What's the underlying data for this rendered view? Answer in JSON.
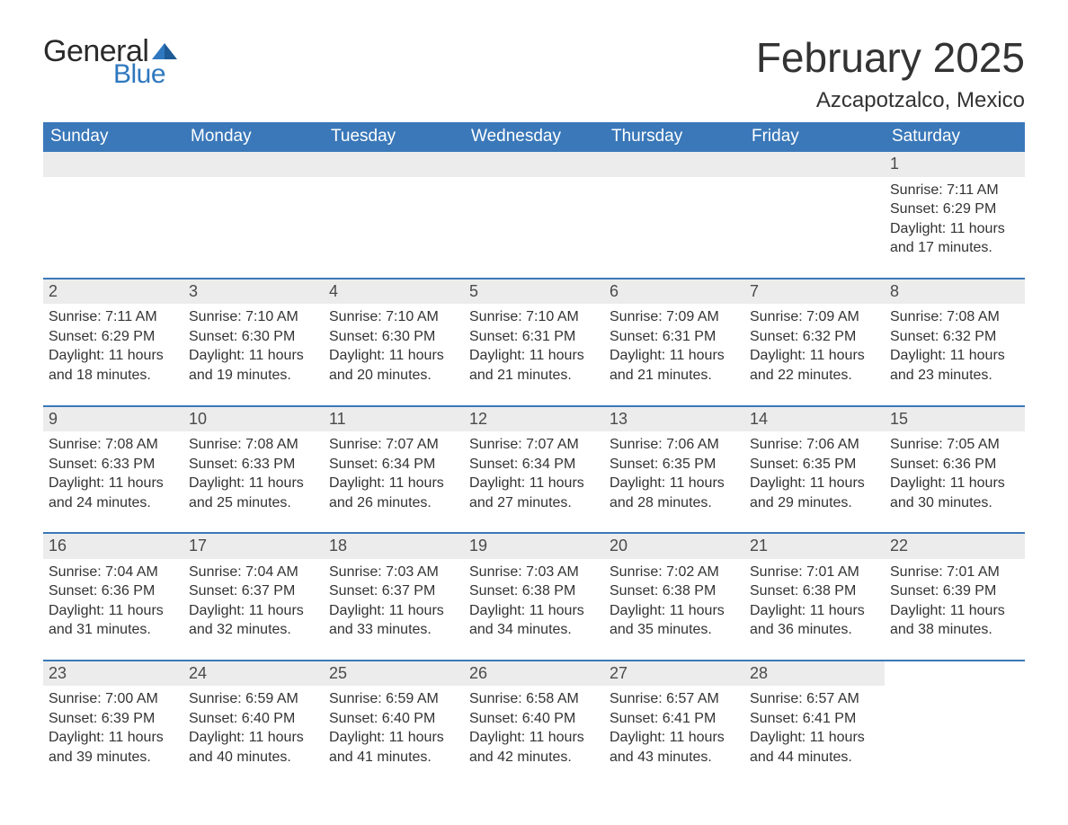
{
  "brand": {
    "word1": "General",
    "word2": "Blue",
    "accent_color": "#2f78bf"
  },
  "header": {
    "month_title": "February 2025",
    "location": "Azcapotzalco, Mexico"
  },
  "colors": {
    "header_bg": "#3a78b9",
    "header_text": "#ffffff",
    "week_rule": "#3a78b9",
    "daynum_bg": "#ececec",
    "page_bg": "#ffffff",
    "text": "#333333"
  },
  "typography": {
    "month_title_pt": 34,
    "location_pt": 18,
    "dayheader_pt": 14,
    "body_pt": 12
  },
  "calendar": {
    "type": "table",
    "day_names": [
      "Sunday",
      "Monday",
      "Tuesday",
      "Wednesday",
      "Thursday",
      "Friday",
      "Saturday"
    ],
    "weeks": [
      [
        {
          "empty": true
        },
        {
          "empty": true
        },
        {
          "empty": true
        },
        {
          "empty": true
        },
        {
          "empty": true
        },
        {
          "empty": true
        },
        {
          "day": "1",
          "sunrise": "Sunrise: 7:11 AM",
          "sunset": "Sunset: 6:29 PM",
          "dl1": "Daylight: 11 hours",
          "dl2": "and 17 minutes."
        }
      ],
      [
        {
          "day": "2",
          "sunrise": "Sunrise: 7:11 AM",
          "sunset": "Sunset: 6:29 PM",
          "dl1": "Daylight: 11 hours",
          "dl2": "and 18 minutes."
        },
        {
          "day": "3",
          "sunrise": "Sunrise: 7:10 AM",
          "sunset": "Sunset: 6:30 PM",
          "dl1": "Daylight: 11 hours",
          "dl2": "and 19 minutes."
        },
        {
          "day": "4",
          "sunrise": "Sunrise: 7:10 AM",
          "sunset": "Sunset: 6:30 PM",
          "dl1": "Daylight: 11 hours",
          "dl2": "and 20 minutes."
        },
        {
          "day": "5",
          "sunrise": "Sunrise: 7:10 AM",
          "sunset": "Sunset: 6:31 PM",
          "dl1": "Daylight: 11 hours",
          "dl2": "and 21 minutes."
        },
        {
          "day": "6",
          "sunrise": "Sunrise: 7:09 AM",
          "sunset": "Sunset: 6:31 PM",
          "dl1": "Daylight: 11 hours",
          "dl2": "and 21 minutes."
        },
        {
          "day": "7",
          "sunrise": "Sunrise: 7:09 AM",
          "sunset": "Sunset: 6:32 PM",
          "dl1": "Daylight: 11 hours",
          "dl2": "and 22 minutes."
        },
        {
          "day": "8",
          "sunrise": "Sunrise: 7:08 AM",
          "sunset": "Sunset: 6:32 PM",
          "dl1": "Daylight: 11 hours",
          "dl2": "and 23 minutes."
        }
      ],
      [
        {
          "day": "9",
          "sunrise": "Sunrise: 7:08 AM",
          "sunset": "Sunset: 6:33 PM",
          "dl1": "Daylight: 11 hours",
          "dl2": "and 24 minutes."
        },
        {
          "day": "10",
          "sunrise": "Sunrise: 7:08 AM",
          "sunset": "Sunset: 6:33 PM",
          "dl1": "Daylight: 11 hours",
          "dl2": "and 25 minutes."
        },
        {
          "day": "11",
          "sunrise": "Sunrise: 7:07 AM",
          "sunset": "Sunset: 6:34 PM",
          "dl1": "Daylight: 11 hours",
          "dl2": "and 26 minutes."
        },
        {
          "day": "12",
          "sunrise": "Sunrise: 7:07 AM",
          "sunset": "Sunset: 6:34 PM",
          "dl1": "Daylight: 11 hours",
          "dl2": "and 27 minutes."
        },
        {
          "day": "13",
          "sunrise": "Sunrise: 7:06 AM",
          "sunset": "Sunset: 6:35 PM",
          "dl1": "Daylight: 11 hours",
          "dl2": "and 28 minutes."
        },
        {
          "day": "14",
          "sunrise": "Sunrise: 7:06 AM",
          "sunset": "Sunset: 6:35 PM",
          "dl1": "Daylight: 11 hours",
          "dl2": "and 29 minutes."
        },
        {
          "day": "15",
          "sunrise": "Sunrise: 7:05 AM",
          "sunset": "Sunset: 6:36 PM",
          "dl1": "Daylight: 11 hours",
          "dl2": "and 30 minutes."
        }
      ],
      [
        {
          "day": "16",
          "sunrise": "Sunrise: 7:04 AM",
          "sunset": "Sunset: 6:36 PM",
          "dl1": "Daylight: 11 hours",
          "dl2": "and 31 minutes."
        },
        {
          "day": "17",
          "sunrise": "Sunrise: 7:04 AM",
          "sunset": "Sunset: 6:37 PM",
          "dl1": "Daylight: 11 hours",
          "dl2": "and 32 minutes."
        },
        {
          "day": "18",
          "sunrise": "Sunrise: 7:03 AM",
          "sunset": "Sunset: 6:37 PM",
          "dl1": "Daylight: 11 hours",
          "dl2": "and 33 minutes."
        },
        {
          "day": "19",
          "sunrise": "Sunrise: 7:03 AM",
          "sunset": "Sunset: 6:38 PM",
          "dl1": "Daylight: 11 hours",
          "dl2": "and 34 minutes."
        },
        {
          "day": "20",
          "sunrise": "Sunrise: 7:02 AM",
          "sunset": "Sunset: 6:38 PM",
          "dl1": "Daylight: 11 hours",
          "dl2": "and 35 minutes."
        },
        {
          "day": "21",
          "sunrise": "Sunrise: 7:01 AM",
          "sunset": "Sunset: 6:38 PM",
          "dl1": "Daylight: 11 hours",
          "dl2": "and 36 minutes."
        },
        {
          "day": "22",
          "sunrise": "Sunrise: 7:01 AM",
          "sunset": "Sunset: 6:39 PM",
          "dl1": "Daylight: 11 hours",
          "dl2": "and 38 minutes."
        }
      ],
      [
        {
          "day": "23",
          "sunrise": "Sunrise: 7:00 AM",
          "sunset": "Sunset: 6:39 PM",
          "dl1": "Daylight: 11 hours",
          "dl2": "and 39 minutes."
        },
        {
          "day": "24",
          "sunrise": "Sunrise: 6:59 AM",
          "sunset": "Sunset: 6:40 PM",
          "dl1": "Daylight: 11 hours",
          "dl2": "and 40 minutes."
        },
        {
          "day": "25",
          "sunrise": "Sunrise: 6:59 AM",
          "sunset": "Sunset: 6:40 PM",
          "dl1": "Daylight: 11 hours",
          "dl2": "and 41 minutes."
        },
        {
          "day": "26",
          "sunrise": "Sunrise: 6:58 AM",
          "sunset": "Sunset: 6:40 PM",
          "dl1": "Daylight: 11 hours",
          "dl2": "and 42 minutes."
        },
        {
          "day": "27",
          "sunrise": "Sunrise: 6:57 AM",
          "sunset": "Sunset: 6:41 PM",
          "dl1": "Daylight: 11 hours",
          "dl2": "and 43 minutes."
        },
        {
          "day": "28",
          "sunrise": "Sunrise: 6:57 AM",
          "sunset": "Sunset: 6:41 PM",
          "dl1": "Daylight: 11 hours",
          "dl2": "and 44 minutes."
        },
        {
          "empty": true,
          "no_bg": true
        }
      ]
    ]
  }
}
